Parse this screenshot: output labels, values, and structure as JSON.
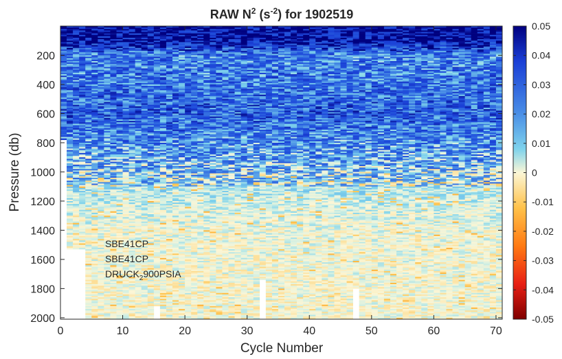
{
  "chart_data": {
    "type": "heatmap",
    "title": {
      "base": "RAW  N",
      "sup1": "2",
      "mid": "  (s",
      "sup2": "-2",
      "tail": ")  for  1902519"
    },
    "xlabel": "Cycle Number",
    "ylabel": "Pressure (db)",
    "xlim": [
      0,
      71
    ],
    "ylim": [
      2010,
      0
    ],
    "xticks": [
      0,
      10,
      20,
      30,
      40,
      50,
      60,
      70
    ],
    "yticks": [
      200,
      400,
      600,
      800,
      1000,
      1200,
      1400,
      1600,
      1800,
      2000
    ],
    "colorbar": {
      "clim": [
        -0.05,
        0.05
      ],
      "ticks": [
        "0.05",
        "0.04",
        "0.03",
        "0.02",
        "0.01",
        "0",
        "-0.01",
        "-0.02",
        "-0.03",
        "-0.04",
        "-0.05"
      ],
      "tick_values": [
        0.05,
        0.04,
        0.03,
        0.02,
        0.01,
        0,
        -0.01,
        -0.02,
        -0.03,
        -0.04,
        -0.05
      ],
      "colormap": "blue-white-red (jet-like, reversed)"
    },
    "profile_max_depth_db": [
      {
        "cycles": [
          1,
          1
        ],
        "max_db": 780
      },
      {
        "cycles": [
          2,
          4
        ],
        "max_db": 1530
      },
      {
        "cycles": [
          5,
          15
        ],
        "max_db": 2010
      },
      {
        "cycles": [
          16,
          16
        ],
        "max_db": 1920
      },
      {
        "cycles": [
          17,
          32
        ],
        "max_db": 2010
      },
      {
        "cycles": [
          33,
          33
        ],
        "max_db": 1740
      },
      {
        "cycles": [
          34,
          47
        ],
        "max_db": 2010
      },
      {
        "cycles": [
          48,
          48
        ],
        "max_db": 1800
      },
      {
        "cycles": [
          49,
          71
        ],
        "max_db": 2010
      }
    ],
    "value_by_depth": [
      {
        "db": 0,
        "value": 0.05
      },
      {
        "db": 100,
        "value": 0.048
      },
      {
        "db": 200,
        "value": 0.024
      },
      {
        "db": 400,
        "value": 0.026
      },
      {
        "db": 600,
        "value": 0.03
      },
      {
        "db": 800,
        "value": 0.022
      },
      {
        "db": 1000,
        "value": 0.012
      },
      {
        "db": 1200,
        "value": 0.005
      },
      {
        "db": 1400,
        "value": 0.002
      },
      {
        "db": 1800,
        "value": 0.001
      },
      {
        "db": 2000,
        "value": 0.001
      }
    ],
    "annotations": [
      {
        "text": "SBE41CP"
      },
      {
        "text": "SBE41CP"
      },
      {
        "text_main": "DRUCK",
        "text_sub": "2",
        "text_tail": "900PSIA"
      }
    ]
  }
}
